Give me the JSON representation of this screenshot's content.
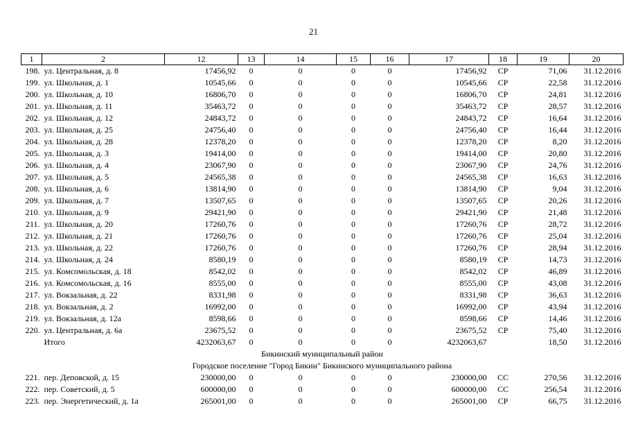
{
  "page_number": "21",
  "headers": [
    "1",
    "2",
    "12",
    "13",
    "14",
    "15",
    "16",
    "17",
    "18",
    "19",
    "20"
  ],
  "rows_a": [
    {
      "n": "198.",
      "name": "ул. Центральная, д. 8",
      "c12": "17456,92",
      "c13": "0",
      "c14": "0",
      "c15": "0",
      "c16": "0",
      "c17": "17456,92",
      "c18": "СР",
      "c19": "71,06",
      "c20": "31.12.2016"
    },
    {
      "n": "199.",
      "name": "ул. Школьная, д. 1",
      "c12": "10545,66",
      "c13": "0",
      "c14": "0",
      "c15": "0",
      "c16": "0",
      "c17": "10545,66",
      "c18": "СР",
      "c19": "22,58",
      "c20": "31.12.2016"
    },
    {
      "n": "200.",
      "name": "ул. Школьная, д. 10",
      "c12": "16806,70",
      "c13": "0",
      "c14": "0",
      "c15": "0",
      "c16": "0",
      "c17": "16806,70",
      "c18": "СР",
      "c19": "24,81",
      "c20": "31.12.2016"
    },
    {
      "n": "201.",
      "name": "ул. Школьная, д. 11",
      "c12": "35463,72",
      "c13": "0",
      "c14": "0",
      "c15": "0",
      "c16": "0",
      "c17": "35463,72",
      "c18": "СР",
      "c19": "28,57",
      "c20": "31.12.2016"
    },
    {
      "n": "202.",
      "name": "ул. Школьная, д. 12",
      "c12": "24843,72",
      "c13": "0",
      "c14": "0",
      "c15": "0",
      "c16": "0",
      "c17": "24843,72",
      "c18": "СР",
      "c19": "16,64",
      "c20": "31.12.2016"
    },
    {
      "n": "203.",
      "name": "ул. Школьная, д. 25",
      "c12": "24756,40",
      "c13": "0",
      "c14": "0",
      "c15": "0",
      "c16": "0",
      "c17": "24756,40",
      "c18": "СР",
      "c19": "16,44",
      "c20": "31.12.2016"
    },
    {
      "n": "204.",
      "name": "ул. Школьная, д. 28",
      "c12": "12378,20",
      "c13": "0",
      "c14": "0",
      "c15": "0",
      "c16": "0",
      "c17": "12378,20",
      "c18": "СР",
      "c19": "8,20",
      "c20": "31.12.2016"
    },
    {
      "n": "205.",
      "name": "ул. Школьная, д. 3",
      "c12": "19414,00",
      "c13": "0",
      "c14": "0",
      "c15": "0",
      "c16": "0",
      "c17": "19414,00",
      "c18": "СР",
      "c19": "20,80",
      "c20": "31.12.2016"
    },
    {
      "n": "206.",
      "name": "ул. Школьная, д. 4",
      "c12": "23067,90",
      "c13": "0",
      "c14": "0",
      "c15": "0",
      "c16": "0",
      "c17": "23067,90",
      "c18": "СР",
      "c19": "24,76",
      "c20": "31.12.2016"
    },
    {
      "n": "207.",
      "name": "ул. Школьная, д. 5",
      "c12": "24565,38",
      "c13": "0",
      "c14": "0",
      "c15": "0",
      "c16": "0",
      "c17": "24565,38",
      "c18": "СР",
      "c19": "16,63",
      "c20": "31.12.2016"
    },
    {
      "n": "208.",
      "name": "ул. Школьная, д. 6",
      "c12": "13814,90",
      "c13": "0",
      "c14": "0",
      "c15": "0",
      "c16": "0",
      "c17": "13814,90",
      "c18": "СР",
      "c19": "9,04",
      "c20": "31.12.2016"
    },
    {
      "n": "209.",
      "name": "ул. Школьная, д. 7",
      "c12": "13507,65",
      "c13": "0",
      "c14": "0",
      "c15": "0",
      "c16": "0",
      "c17": "13507,65",
      "c18": "СР",
      "c19": "20,26",
      "c20": "31.12.2016"
    },
    {
      "n": "210.",
      "name": "ул. Школьная, д. 9",
      "c12": "29421,90",
      "c13": "0",
      "c14": "0",
      "c15": "0",
      "c16": "0",
      "c17": "29421,90",
      "c18": "СР",
      "c19": "21,48",
      "c20": "31.12.2016"
    },
    {
      "n": "211.",
      "name": "ул. Школьная, д. 20",
      "c12": "17260,76",
      "c13": "0",
      "c14": "0",
      "c15": "0",
      "c16": "0",
      "c17": "17260,76",
      "c18": "СР",
      "c19": "28,72",
      "c20": "31.12.2016"
    },
    {
      "n": "212.",
      "name": "ул. Школьная, д. 21",
      "c12": "17260,76",
      "c13": "0",
      "c14": "0",
      "c15": "0",
      "c16": "0",
      "c17": "17260,76",
      "c18": "СР",
      "c19": "25,04",
      "c20": "31.12.2016"
    },
    {
      "n": "213.",
      "name": "ул. Школьная, д. 22",
      "c12": "17260,76",
      "c13": "0",
      "c14": "0",
      "c15": "0",
      "c16": "0",
      "c17": "17260,76",
      "c18": "СР",
      "c19": "28,94",
      "c20": "31.12.2016"
    },
    {
      "n": "214.",
      "name": "ул. Школьная, д. 24",
      "c12": "8580,19",
      "c13": "0",
      "c14": "0",
      "c15": "0",
      "c16": "0",
      "c17": "8580,19",
      "c18": "СР",
      "c19": "14,73",
      "c20": "31.12.2016"
    },
    {
      "n": "215.",
      "name": "ул. Комсомольская, д. 18",
      "c12": "8542,02",
      "c13": "0",
      "c14": "0",
      "c15": "0",
      "c16": "0",
      "c17": "8542,02",
      "c18": "СР",
      "c19": "46,89",
      "c20": "31.12.2016"
    },
    {
      "n": "216.",
      "name": "ул. Комсомольская, д. 16",
      "c12": "8555,00",
      "c13": "0",
      "c14": "0",
      "c15": "0",
      "c16": "0",
      "c17": "8555,00",
      "c18": "СР",
      "c19": "43,08",
      "c20": "31.12.2016"
    },
    {
      "n": "217.",
      "name": "ул. Вокзальная, д. 22",
      "c12": "8331,98",
      "c13": "0",
      "c14": "0",
      "c15": "0",
      "c16": "0",
      "c17": "8331,98",
      "c18": "СР",
      "c19": "36,63",
      "c20": "31.12.2016"
    },
    {
      "n": "218.",
      "name": "ул. Вокзальная, д. 2",
      "c12": "16992,00",
      "c13": "0",
      "c14": "0",
      "c15": "0",
      "c16": "0",
      "c17": "16992,00",
      "c18": "СР",
      "c19": "43,94",
      "c20": "31.12.2016"
    },
    {
      "n": "219.",
      "name": "ул. Вокзальная, д. 12а",
      "c12": "8598,66",
      "c13": "0",
      "c14": "0",
      "c15": "0",
      "c16": "0",
      "c17": "8598,66",
      "c18": "СР",
      "c19": "14,46",
      "c20": "31.12.2016"
    },
    {
      "n": "220.",
      "name": "ул. Центральная, д. 6а",
      "c12": "23675,52",
      "c13": "0",
      "c14": "0",
      "c15": "0",
      "c16": "0",
      "c17": "23675,52",
      "c18": "СР",
      "c19": "75,40",
      "c20": "31.12.2016"
    }
  ],
  "total": {
    "name": "Итого",
    "c12": "4232063,67",
    "c13": "0",
    "c14": "0",
    "c15": "0",
    "c16": "0",
    "c17": "4232063,67",
    "c18": "",
    "c19": "18,50",
    "c20": "31.12.2016"
  },
  "section_district": "Бикинский муниципальный район",
  "section_settlement": "Городское поселение \"Город Бикин\" Бикинского муниципального района",
  "rows_b": [
    {
      "n": "221.",
      "name": "пер. Деповской, д. 15",
      "c12": "230000,00",
      "c13": "0",
      "c14": "0",
      "c15": "0",
      "c16": "0",
      "c17": "230000,00",
      "c18": "СС",
      "c19": "270,56",
      "c20": "31.12.2016"
    },
    {
      "n": "222.",
      "name": "пер. Советский, д. 5",
      "c12": "600000,00",
      "c13": "0",
      "c14": "0",
      "c15": "0",
      "c16": "0",
      "c17": "600000,00",
      "c18": "СС",
      "c19": "256,54",
      "c20": "31.12.2016"
    },
    {
      "n": "223.",
      "name": "пер. Энергетический, д. 1а",
      "c12": "265001,00",
      "c13": "0",
      "c14": "0",
      "c15": "0",
      "c16": "0",
      "c17": "265001,00",
      "c18": "СР",
      "c19": "66,75",
      "c20": "31.12.2016"
    }
  ]
}
